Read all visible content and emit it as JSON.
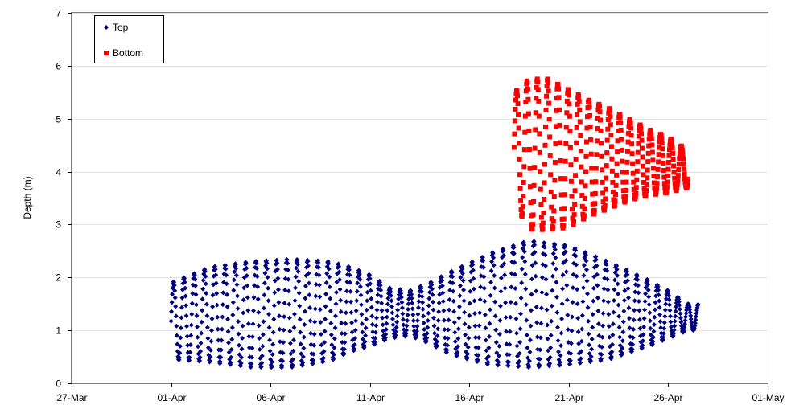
{
  "chart_data": {
    "type": "scatter",
    "title": "",
    "xlabel": "",
    "ylabel": "Depth (m)",
    "xlim": [
      "2009-03-27",
      "2009-05-01"
    ],
    "ylim": [
      0,
      7
    ],
    "x_ticks": [
      "27-Mar",
      "01-Apr",
      "06-Apr",
      "11-Apr",
      "16-Apr",
      "21-Apr",
      "26-Apr",
      "01-May"
    ],
    "y_ticks": [
      "0",
      "1",
      "2",
      "3",
      "4",
      "5",
      "6",
      "7"
    ],
    "grid": {
      "horizontal": true,
      "vertical": false
    },
    "legend": {
      "position": "top-left",
      "entries": [
        "Top",
        "Bottom"
      ]
    },
    "series": [
      {
        "name": "Top",
        "marker": "diamond",
        "color": "#00007F",
        "sampling_interval_hours": 0.5,
        "x_range": [
          "2009-04-01 00:00",
          "2009-04-27 12:00"
        ],
        "oscillation_period_hours": 12.42,
        "envelope": {
          "x": [
            "2009-04-01",
            "2009-04-03",
            "2009-04-05",
            "2009-04-07",
            "2009-04-09",
            "2009-04-10",
            "2009-04-11",
            "2009-04-12",
            "2009-04-13",
            "2009-04-14",
            "2009-04-15",
            "2009-04-17",
            "2009-04-19",
            "2009-04-21",
            "2009-04-23",
            "2009-04-25",
            "2009-04-26",
            "2009-04-27"
          ],
          "max": [
            1.9,
            2.2,
            2.3,
            2.35,
            2.3,
            2.2,
            2.05,
            1.8,
            1.75,
            1.9,
            2.1,
            2.45,
            2.7,
            2.6,
            2.3,
            1.95,
            1.75,
            1.5
          ],
          "min": [
            0.45,
            0.4,
            0.3,
            0.3,
            0.42,
            0.6,
            0.7,
            0.85,
            0.9,
            0.75,
            0.55,
            0.35,
            0.3,
            0.35,
            0.45,
            0.7,
            0.85,
            1.0
          ]
        }
      },
      {
        "name": "Bottom",
        "marker": "square",
        "color": "#FF0000",
        "sampling_interval_hours": 0.5,
        "x_range": [
          "2009-04-18 06:00",
          "2009-04-27 00:00"
        ],
        "oscillation_period_hours": 12.42,
        "envelope": {
          "x": [
            "2009-04-18",
            "2009-04-19",
            "2009-04-20",
            "2009-04-21",
            "2009-04-22",
            "2009-04-23",
            "2009-04-24",
            "2009-04-25",
            "2009-04-26",
            "2009-04-27"
          ],
          "max": [
            5.4,
            5.75,
            5.75,
            5.55,
            5.35,
            5.2,
            5.0,
            4.8,
            4.65,
            4.4
          ],
          "min": [
            3.6,
            2.9,
            2.9,
            2.95,
            3.15,
            3.3,
            3.45,
            3.55,
            3.6,
            3.7
          ]
        }
      }
    ]
  }
}
